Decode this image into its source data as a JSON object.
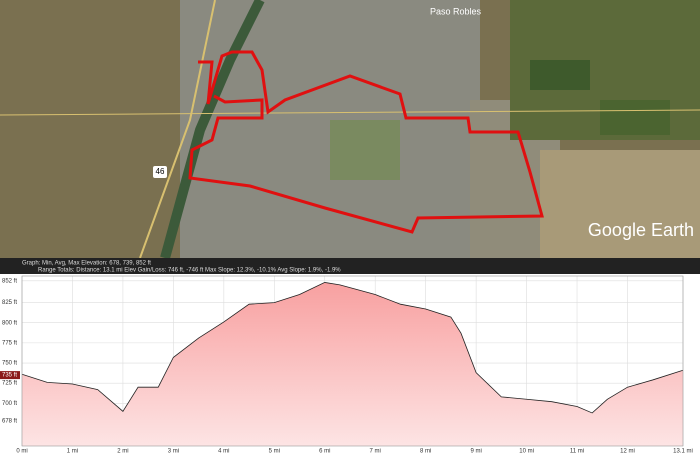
{
  "map": {
    "place_label": "Paso Robles",
    "highway_label": "46",
    "logo": "Google Earth"
  },
  "chart_data": {
    "type": "area",
    "title": "Graph: Min, Avg, Max Elevation: 678, 739, 852 ft",
    "subtitle": "Range Totals: Distance: 13.1 mi   Elev Gain/Loss: 746 ft, -746 ft   Max Slope: 12.3%, -10.1%   Avg Slope: 1.9%, -1.9%",
    "x": [
      0,
      0.5,
      1,
      1.5,
      2,
      2.3,
      2.7,
      3,
      3.5,
      4,
      4.5,
      5,
      5.5,
      6,
      6.3,
      7,
      7.5,
      8,
      8.5,
      8.7,
      9,
      9.5,
      10,
      10.5,
      11,
      11.3,
      11.6,
      12,
      12.5,
      13.1
    ],
    "series": [
      {
        "name": "Elevation",
        "color": "#d33",
        "values": [
          736,
          726,
          724,
          717,
          690,
          720,
          720,
          757,
          781,
          801,
          823,
          825,
          835,
          850,
          847,
          835,
          823,
          817,
          807,
          787,
          738,
          708,
          705,
          702,
          696,
          688,
          705,
          720,
          729,
          741
        ]
      }
    ],
    "xlim": [
      0,
      13.1
    ],
    "xticks": [
      {
        "value": 0,
        "label": "0 mi"
      },
      {
        "value": 1,
        "label": "1 mi"
      },
      {
        "value": 2,
        "label": "2 mi"
      },
      {
        "value": 3,
        "label": "3 mi"
      },
      {
        "value": 4,
        "label": "4 mi"
      },
      {
        "value": 5,
        "label": "5 mi"
      },
      {
        "value": 6,
        "label": "6 mi"
      },
      {
        "value": 7,
        "label": "7 mi"
      },
      {
        "value": 8,
        "label": "8 mi"
      },
      {
        "value": 9,
        "label": "9 mi"
      },
      {
        "value": 10,
        "label": "10 mi"
      },
      {
        "value": 11,
        "label": "11 mi"
      },
      {
        "value": 12,
        "label": "12 mi"
      },
      {
        "value": 13.1,
        "label": "13.1 mi"
      }
    ],
    "ylim": [
      647,
      858
    ],
    "yticks": [
      {
        "value": 678,
        "label": "678 ft"
      },
      {
        "value": 700,
        "label": "700 ft"
      },
      {
        "value": 725,
        "label": "725 ft"
      },
      {
        "value": 750,
        "label": "750 ft"
      },
      {
        "value": 775,
        "label": "775 ft"
      },
      {
        "value": 800,
        "label": "800 ft"
      },
      {
        "value": 825,
        "label": "825 ft"
      },
      {
        "value": 852,
        "label": "852 ft"
      }
    ],
    "marker": {
      "value": 735,
      "label": "735 ft"
    },
    "grid": true
  }
}
